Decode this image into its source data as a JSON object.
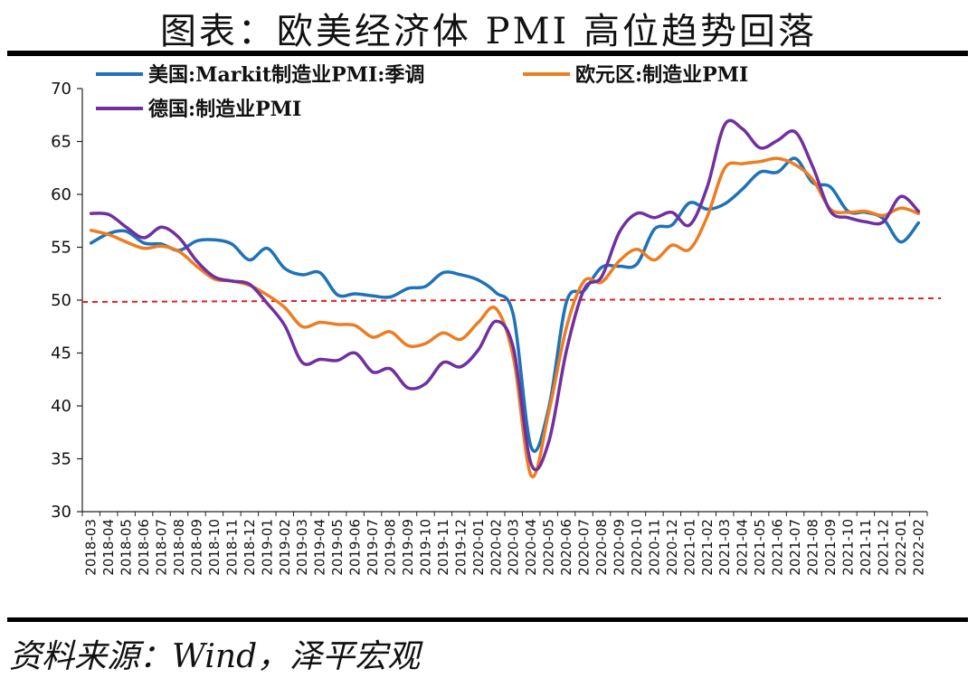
{
  "title": "图表：欧美经济体 PMI 高位趋势回落",
  "source": "资料来源：Wind，泽平宏观",
  "colors": {
    "us": "#1f72b8",
    "eu": "#ed7d21",
    "de": "#7030a0",
    "ref": "#e02020"
  },
  "chart_data": {
    "type": "line",
    "ylim": [
      30,
      70
    ],
    "yticks": [
      30,
      35,
      40,
      45,
      50,
      55,
      60,
      65,
      70
    ],
    "reference_line": 50,
    "legend_position": "top",
    "categories": [
      "2018-03",
      "2018-04",
      "2018-05",
      "2018-06",
      "2018-07",
      "2018-08",
      "2018-09",
      "2018-10",
      "2018-11",
      "2018-12",
      "2019-01",
      "2019-02",
      "2019-03",
      "2019-04",
      "2019-05",
      "2019-06",
      "2019-07",
      "2019-08",
      "2019-09",
      "2019-10",
      "2019-11",
      "2019-12",
      "2020-01",
      "2020-02",
      "2020-03",
      "2020-04",
      "2020-05",
      "2020-06",
      "2020-07",
      "2020-08",
      "2020-09",
      "2020-10",
      "2020-11",
      "2020-12",
      "2021-01",
      "2021-02",
      "2021-03",
      "2021-04",
      "2021-05",
      "2021-06",
      "2021-07",
      "2021-08",
      "2021-09",
      "2021-10",
      "2021-11",
      "2021-12",
      "2022-01",
      "2022-02"
    ],
    "series": [
      {
        "key": "us",
        "name": "美国:Markit制造业PMI:季调",
        "values": [
          55.4,
          56.3,
          56.5,
          55.4,
          55.3,
          54.7,
          55.6,
          55.7,
          55.3,
          53.8,
          54.9,
          53.0,
          52.4,
          52.6,
          50.5,
          50.6,
          50.4,
          50.3,
          51.1,
          51.3,
          52.6,
          52.4,
          51.9,
          50.7,
          48.5,
          36.1,
          39.8,
          49.8,
          50.9,
          53.1,
          53.2,
          53.4,
          56.7,
          57.1,
          59.2,
          58.6,
          59.1,
          60.5,
          62.1,
          62.1,
          63.4,
          61.1,
          60.7,
          58.4,
          58.3,
          57.7,
          55.5,
          57.3
        ]
      },
      {
        "key": "eu",
        "name": "欧元区:制造业PMI",
        "values": [
          56.6,
          56.2,
          55.5,
          54.9,
          55.1,
          54.6,
          53.2,
          52.0,
          51.8,
          51.4,
          50.5,
          49.3,
          47.5,
          47.9,
          47.7,
          47.6,
          46.5,
          47.0,
          45.7,
          45.9,
          46.9,
          46.3,
          47.9,
          49.2,
          44.5,
          33.4,
          39.4,
          47.4,
          51.8,
          51.7,
          53.7,
          54.8,
          53.8,
          55.2,
          54.8,
          57.9,
          62.5,
          62.9,
          63.1,
          63.4,
          62.8,
          61.4,
          58.6,
          58.3,
          58.4,
          58.0,
          58.7,
          58.2
        ]
      },
      {
        "key": "de",
        "name": "德国:制造业PMI",
        "values": [
          58.2,
          58.1,
          56.9,
          55.9,
          56.9,
          55.9,
          53.7,
          52.2,
          51.8,
          51.5,
          49.7,
          47.6,
          44.1,
          44.4,
          44.3,
          45.0,
          43.2,
          43.5,
          41.7,
          42.1,
          44.1,
          43.7,
          45.3,
          48.0,
          45.4,
          34.5,
          36.6,
          45.2,
          51.0,
          52.2,
          56.4,
          58.2,
          57.8,
          58.3,
          57.1,
          60.7,
          66.6,
          66.2,
          64.4,
          65.1,
          65.9,
          62.6,
          58.4,
          57.8,
          57.4,
          57.4,
          59.8,
          58.4
        ]
      }
    ]
  }
}
